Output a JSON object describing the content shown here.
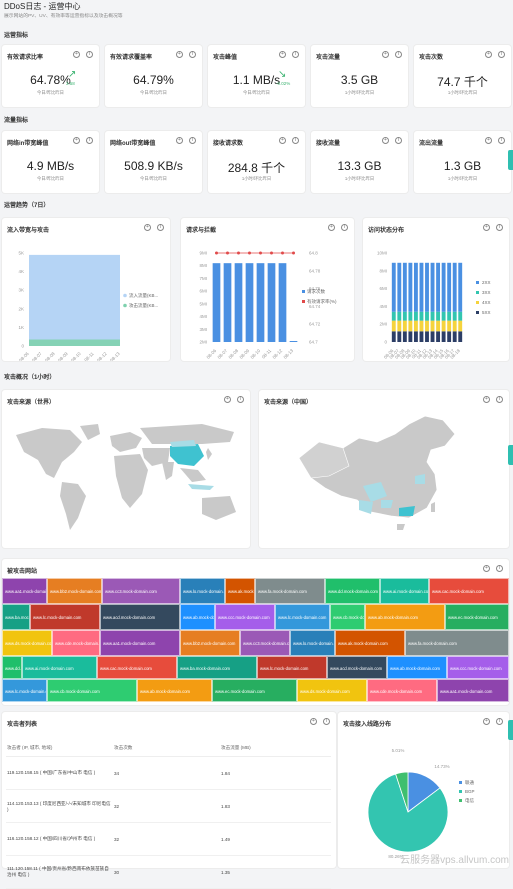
{
  "header": {
    "title": "DDoS日志 - 运营中心",
    "subtitle": "展示网站的PV、UV、有效率等运营指标以及攻击概况等"
  },
  "sections": {
    "ops": "运营指标",
    "flow": "流量指标",
    "trend": "运营趋势（7日）",
    "attack": "攻击概况（1小时）"
  },
  "ops_cards": [
    {
      "title": "有效请求比率",
      "value": "64.78%",
      "sub": "今日/昨比昨日",
      "delta": "3.58"
    },
    {
      "title": "有效请求覆盖率",
      "value": "64.79%",
      "sub": "今日/昨比昨日"
    },
    {
      "title": "攻击峰值",
      "value": "1.1 MB/s",
      "sub": "今日/昨比昨日",
      "delta": "-0.02%"
    },
    {
      "title": "攻击流量",
      "value": "3.5 GB",
      "sub": "1小时/环比昨日"
    },
    {
      "title": "攻击次数",
      "value": "74.7 千个",
      "sub": "1小时/环比昨日"
    }
  ],
  "flow_cards": [
    {
      "title": "网络in带宽峰值",
      "value": "4.9 MB/s",
      "sub": "今日/昨比昨日"
    },
    {
      "title": "网络out带宽峰值",
      "value": "508.9 KB/s",
      "sub": "今日/昨比昨日"
    },
    {
      "title": "接收请求数",
      "value": "284.8 千个",
      "sub": "1小时/环比昨日"
    },
    {
      "title": "接收流量",
      "value": "13.3 GB",
      "sub": "1小时/环比昨日"
    },
    {
      "title": "流出流量",
      "value": "1.3 GB",
      "sub": "1小时/环比昨日"
    }
  ],
  "trend_titles": {
    "bandwidth": "流入带宽与攻击",
    "requests": "请求与拦截",
    "status": "访问状态分布"
  },
  "chart_data": [
    {
      "type": "area",
      "title": "流入带宽与攻击",
      "y_ticks": [
        "5K",
        "4K",
        "3K",
        "2K",
        "1K",
        "0"
      ],
      "x": [
        "08-06",
        "08-07",
        "08-08",
        "08-09",
        "08-10",
        "08-11",
        "08-12",
        "08-13"
      ],
      "series": [
        {
          "name": "流入流量(KB...",
          "values": [
            4900,
            4900,
            4900,
            4900,
            4900,
            4900,
            4900,
            4900
          ],
          "color": "#b5d4f5"
        },
        {
          "name": "攻击流量(KB...",
          "values": [
            350,
            350,
            350,
            350,
            350,
            350,
            350,
            350
          ],
          "color": "#7fd1ae"
        }
      ],
      "ylim": [
        0,
        5000
      ]
    },
    {
      "type": "bar",
      "title": "请求与拦截",
      "y_ticks": [
        "9MI",
        "8MI",
        "7MI",
        "6MI",
        "5MI",
        "4MI",
        "3MI",
        "2MI"
      ],
      "y2_ticks": [
        "64.8",
        "64.78",
        "64.76",
        "64.74",
        "64.72",
        "64.7"
      ],
      "categories": [
        "08-06",
        "08-07",
        "08-08",
        "08-09",
        "08-10",
        "08-11",
        "08-12",
        "08-13"
      ],
      "series": [
        {
          "name": "请求次数",
          "values": [
            8.2,
            8.2,
            8.2,
            8.2,
            8.2,
            8.2,
            8.2,
            1.0
          ],
          "color": "#4a90e2"
        },
        {
          "name": "有效请求率(%)",
          "values": [
            64.79,
            64.79,
            64.79,
            64.79,
            64.79,
            64.79,
            64.79,
            64.79
          ],
          "color": "#e04a4a"
        }
      ],
      "ylim": [
        2,
        9
      ]
    },
    {
      "type": "bar",
      "title": "访问状态分布",
      "y_ticks": [
        "10MI",
        "8MI",
        "6MI",
        "4MI",
        "2MI",
        "0"
      ],
      "categories": [
        "08-06",
        "08-07",
        "08-08",
        "08-09",
        "08-10",
        "08-11",
        "08-12",
        "08-13",
        "08-14",
        "08-15",
        "08-16",
        "08-17",
        "08-18"
      ],
      "series": [
        {
          "name": "2XX",
          "values": [
            5.5,
            5.5,
            5.5,
            5.5,
            5.5,
            5.5,
            5.5,
            5.5,
            5.5,
            5.5,
            5.5,
            5.5,
            5.5
          ],
          "color": "#4a90e2"
        },
        {
          "name": "3XX",
          "values": [
            1,
            1,
            1,
            1,
            1,
            1,
            1,
            1,
            1,
            1,
            1,
            1,
            1
          ],
          "color": "#33c5b0"
        },
        {
          "name": "4XX",
          "values": [
            1.2,
            1.2,
            1.2,
            1.2,
            1.2,
            1.2,
            1.2,
            1.2,
            1.2,
            1.2,
            1.2,
            1.2,
            1.2
          ],
          "color": "#f5d33d"
        },
        {
          "name": "5XX",
          "values": [
            1.2,
            1.2,
            1.2,
            1.2,
            1.2,
            1.2,
            1.2,
            1.2,
            1.2,
            1.2,
            1.2,
            1.2,
            1.2
          ],
          "color": "#2c3e66"
        }
      ],
      "ylim": [
        0,
        10
      ]
    },
    {
      "type": "pie",
      "title": "攻击接入线路分布",
      "series": [
        {
          "name": "联通",
          "value": 14.73,
          "label": "14.73%",
          "color": "#4a90e2"
        },
        {
          "name": "BGP",
          "value": 80.26,
          "label": "80.26%",
          "color": "#33c5b0"
        },
        {
          "name": "电信",
          "value": 5.01,
          "label": "5.01%",
          "color": "#3fbf6f"
        }
      ]
    }
  ],
  "maps": {
    "world_title": "攻击来源（世界）",
    "china_title": "攻击来源（中国）"
  },
  "treemap": {
    "title": "被攻击网站",
    "labels": [
      "www.aa1.mock-domain.com",
      "www.bb2.mock-domain.com",
      "www.cc3.mock-domain.com",
      "www.lo.mock-domain.com",
      "www.ak.mock-domain.com",
      "www.fa.mock-domain.com",
      "www.dd.mock-domain.com",
      "www.ai.mock-domain.com",
      "www.cac.mock-domain.com",
      "www.ba.mock-domain.com",
      "www.lc.mock-domain.com",
      "www.acd.mock-domain.com",
      "www.ab.mock-domain.com",
      "www.ccc.mock-domain.com",
      "www.lc.mock-domain.com",
      "www.cb.mock-domain.com",
      "www.ab.mock-domain.com",
      "www.ec.mock-domain.com",
      "www.ds.mock-domain.com",
      "www.cde.mock-domain.com"
    ]
  },
  "attackers": {
    "title": "攻击者列表",
    "columns": [
      "攻击者 (IP, 城市, 地域)",
      "攻击次数",
      "攻击流量 (MB)"
    ],
    "rows": [
      [
        "119.120.158.15 ( 中国/广东省/中山市 电信 )",
        "34",
        "1.84"
      ],
      [
        "114.120.153.13 ( 印度尼西亚/-/-/未知城市 印尼电信 )",
        "32",
        "1.83"
      ],
      [
        "116.120.158.12 ( 中国/四川省/泸州市 电信 )",
        "32",
        "1.49"
      ],
      [
        "111.120.158.11 ( 中国/贵州省/黔西南布依族苗族自治州 电信 )",
        "30",
        "1.35"
      ]
    ]
  },
  "watermark": "云服务器vps.allvum.com"
}
